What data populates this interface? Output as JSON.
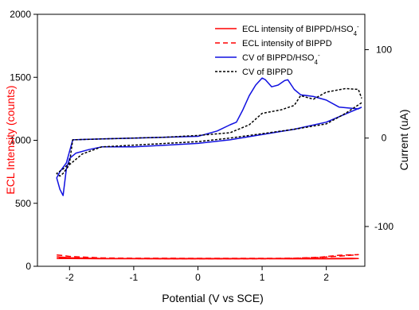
{
  "colors": {
    "ecl": "#ff0000",
    "cv_hso4": "#1010e0",
    "cv_bippd": "#000000",
    "axis": "#000000"
  },
  "axes": {
    "xlabel": "Potential (V vs SCE)",
    "ylabel_left": "ECL Intensity (counts)",
    "ylabel_right": "Current (uA)"
  },
  "chart_data": {
    "type": "line",
    "title": "",
    "xlabel": "Potential (V vs SCE)",
    "ylabel": "ECL Intensity (counts)",
    "y2label": "Current (uA)",
    "xlim": [
      -2.5,
      2.6
    ],
    "ylim": [
      0,
      2000
    ],
    "y2lim": [
      -145,
      140
    ],
    "x_ticks": [
      -2,
      -1,
      0,
      1,
      2
    ],
    "y_ticks": [
      0,
      500,
      1000,
      1500,
      2000
    ],
    "y2_ticks": [
      -100,
      0,
      100
    ],
    "legend_position": "top-right",
    "grid": false,
    "series": [
      {
        "name": "ECL intensity of BIPPD/HSO4-",
        "legend": {
          "base": "ECL intensity of BIPPD/HSO",
          "sub": "4",
          "sup": "-"
        },
        "axis": "left",
        "style": "solid",
        "color": "#ff0000",
        "x": [
          -2.2,
          -2.1,
          -2.0,
          -1.5,
          -1.0,
          -0.5,
          0.0,
          0.5,
          1.0,
          1.5,
          2.0,
          2.4,
          2.5,
          2.4,
          2.0,
          1.5,
          1.0,
          0.5,
          0.0,
          -0.5,
          -1.0,
          -1.5,
          -2.0,
          -2.2
        ],
        "y": [
          75,
          72,
          68,
          62,
          62,
          62,
          62,
          61,
          62,
          62,
          62,
          63,
          62,
          60,
          59,
          59,
          60,
          59,
          59,
          59,
          60,
          60,
          61,
          62
        ]
      },
      {
        "name": "ECL intensity of BIPPD",
        "axis": "left",
        "style": "dashed",
        "color": "#ff0000",
        "x": [
          -2.2,
          -2.1,
          -2.0,
          -1.5,
          -1.0,
          -0.5,
          0.0,
          0.5,
          1.0,
          1.5,
          1.9,
          2.2,
          2.5,
          2.2,
          1.9,
          1.5,
          1.0,
          0.5,
          0.0,
          -0.5,
          -1.0,
          -1.5,
          -2.0,
          -2.2
        ],
        "y": [
          90,
          85,
          78,
          66,
          64,
          64,
          63,
          63,
          63,
          64,
          72,
          88,
          92,
          80,
          70,
          63,
          60,
          60,
          60,
          60,
          61,
          62,
          64,
          68
        ]
      },
      {
        "name": "CV of BIPPD/HSO4-",
        "legend": {
          "base": "CV of BIPPD/HSO",
          "sub": "4",
          "sup": "-"
        },
        "axis": "right",
        "style": "solid",
        "color": "#1010e0",
        "x": [
          2.55,
          2.0,
          1.5,
          1.0,
          0.5,
          0.0,
          -0.5,
          -1.0,
          -1.5,
          -1.7,
          -1.9,
          -2.0,
          -2.05,
          -2.1,
          -2.15,
          -2.2,
          -2.15,
          -2.05,
          -1.95,
          -1.5,
          -1.0,
          -0.5,
          0.0,
          0.3,
          0.5,
          0.6,
          0.7,
          0.8,
          0.9,
          1.0,
          1.05,
          1.15,
          1.25,
          1.35,
          1.4,
          1.5,
          1.6,
          1.8,
          2.0,
          2.2,
          2.5,
          2.55
        ],
        "y": [
          35,
          18,
          10,
          4,
          -2,
          -6,
          -8,
          -10,
          -10,
          -13,
          -17,
          -23,
          -35,
          -65,
          -58,
          -45,
          -38,
          -28,
          -2,
          -1,
          0,
          1,
          2,
          8,
          15,
          18,
          32,
          48,
          60,
          68,
          66,
          58,
          60,
          65,
          66,
          55,
          49,
          47,
          43,
          35,
          33,
          35
        ]
      },
      {
        "name": "CV of BIPPD",
        "axis": "right",
        "style": "dotted",
        "color": "#000000",
        "x": [
          2.55,
          2.3,
          2.0,
          1.5,
          1.0,
          0.5,
          0.0,
          -0.5,
          -1.0,
          -1.5,
          -1.8,
          -2.0,
          -2.1,
          -2.15,
          -2.2,
          -2.1,
          -2.0,
          -1.95,
          -1.5,
          -1.0,
          -0.5,
          0.0,
          0.5,
          0.8,
          1.0,
          1.3,
          1.5,
          1.6,
          1.8,
          2.0,
          2.3,
          2.5,
          2.55
        ],
        "y": [
          40,
          28,
          16,
          10,
          5,
          0,
          -4,
          -6,
          -8,
          -10,
          -18,
          -30,
          -40,
          -43,
          -40,
          -35,
          -28,
          -2,
          -1,
          0,
          1,
          3,
          6,
          15,
          28,
          32,
          37,
          48,
          44,
          52,
          56,
          55,
          45
        ]
      }
    ]
  }
}
